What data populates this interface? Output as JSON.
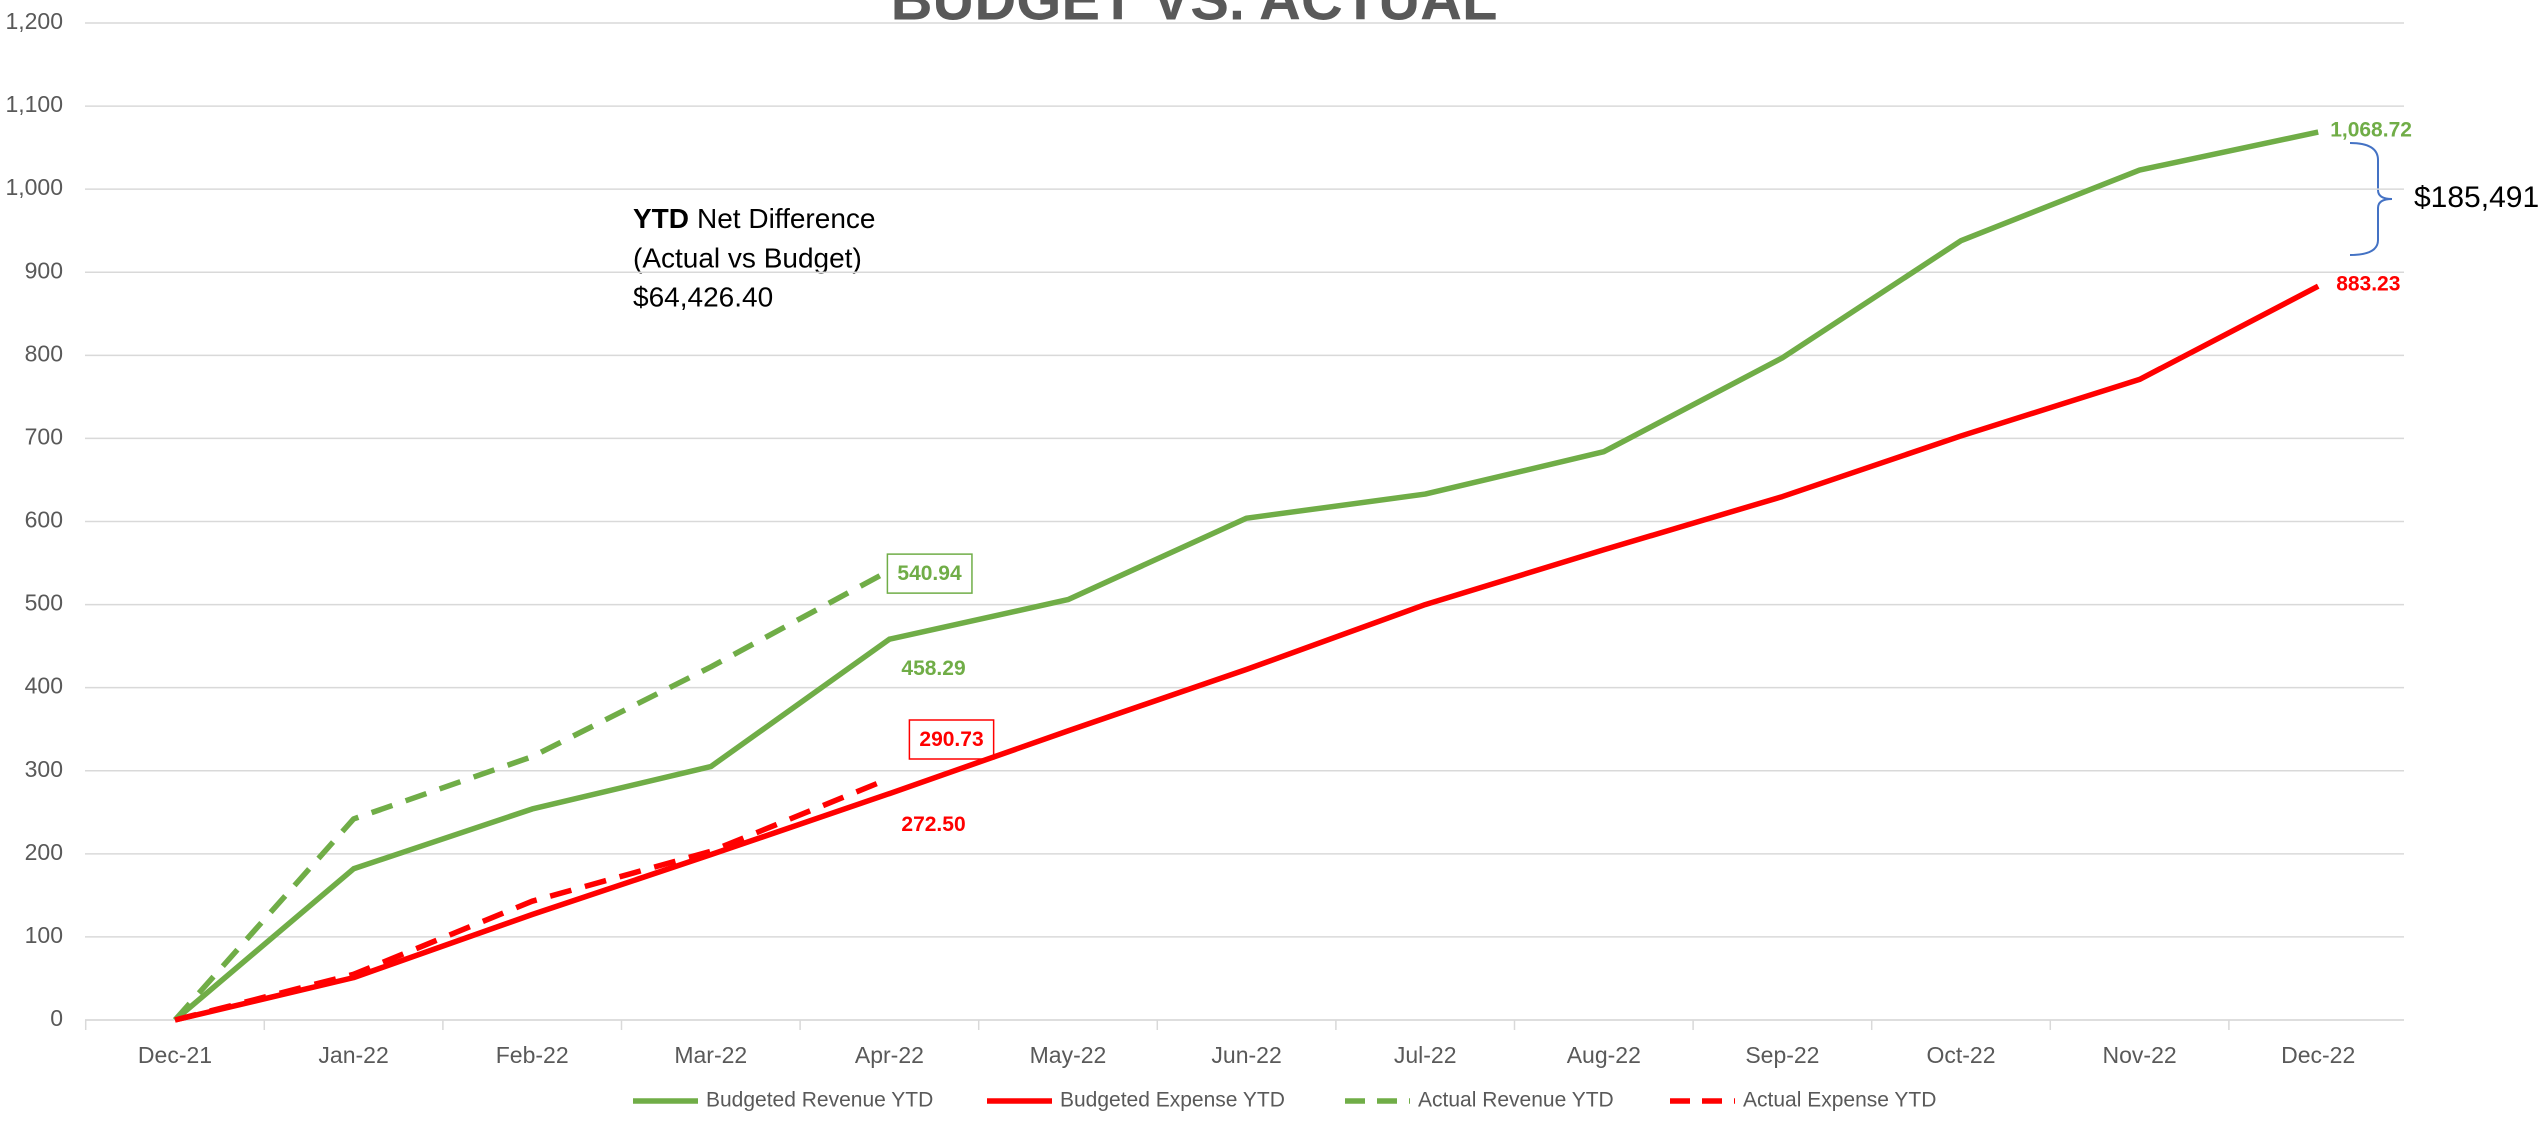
{
  "chart_data": {
    "type": "line",
    "title": "BUDGET VS. ACTUAL",
    "categories": [
      "Dec-21",
      "Jan-22",
      "Feb-22",
      "Mar-22",
      "Apr-22",
      "May-22",
      "Jun-22",
      "Jul-22",
      "Aug-22",
      "Sep-22",
      "Oct-22",
      "Nov-22",
      "Dec-22"
    ],
    "series": [
      {
        "name": "Budgeted Revenue YTD",
        "color": "#70ad47",
        "dash": false,
        "values": [
          0,
          182,
          254,
          305,
          458.29,
          506,
          604,
          633,
          684,
          797,
          938,
          1023,
          1068.72
        ],
        "value_labels": [
          null,
          null,
          null,
          null,
          "458.29",
          null,
          null,
          null,
          null,
          null,
          null,
          null,
          "1,068.72"
        ]
      },
      {
        "name": "Budgeted Expense YTD",
        "color": "#ff0000",
        "dash": false,
        "values": [
          0,
          51,
          127,
          199,
          272.5,
          348,
          422,
          500,
          566,
          630,
          703,
          771,
          883.23
        ],
        "value_labels": [
          null,
          null,
          null,
          null,
          "272.50",
          null,
          null,
          null,
          null,
          null,
          null,
          null,
          "883.23"
        ]
      },
      {
        "name": "Actual Revenue YTD",
        "color": "#70ad47",
        "dash": true,
        "values": [
          0,
          242,
          317,
          425,
          540.94,
          null,
          null,
          null,
          null,
          null,
          null,
          null,
          null
        ]
      },
      {
        "name": "Actual Expense YTD",
        "color": "#ff0000",
        "dash": true,
        "values": [
          0,
          55,
          143,
          203,
          290.73,
          null,
          null,
          null,
          null,
          null,
          null,
          null,
          null
        ]
      }
    ],
    "ylim": [
      0,
      1200
    ],
    "yticks": [
      0,
      100,
      200,
      300,
      400,
      500,
      600,
      700,
      800,
      900,
      {
        "value": 1000,
        "label": "1,000"
      },
      {
        "value": 1100,
        "label": "1,100"
      },
      {
        "value": 1200,
        "label": "1,200"
      }
    ],
    "grid": true,
    "legend": "bottom",
    "annotation": {
      "bold": "YTD",
      "text": "Net Difference",
      "lines": [
        "(Actual vs Budget)",
        "$64,426.40"
      ]
    },
    "bracket_label": "$185,491"
  }
}
